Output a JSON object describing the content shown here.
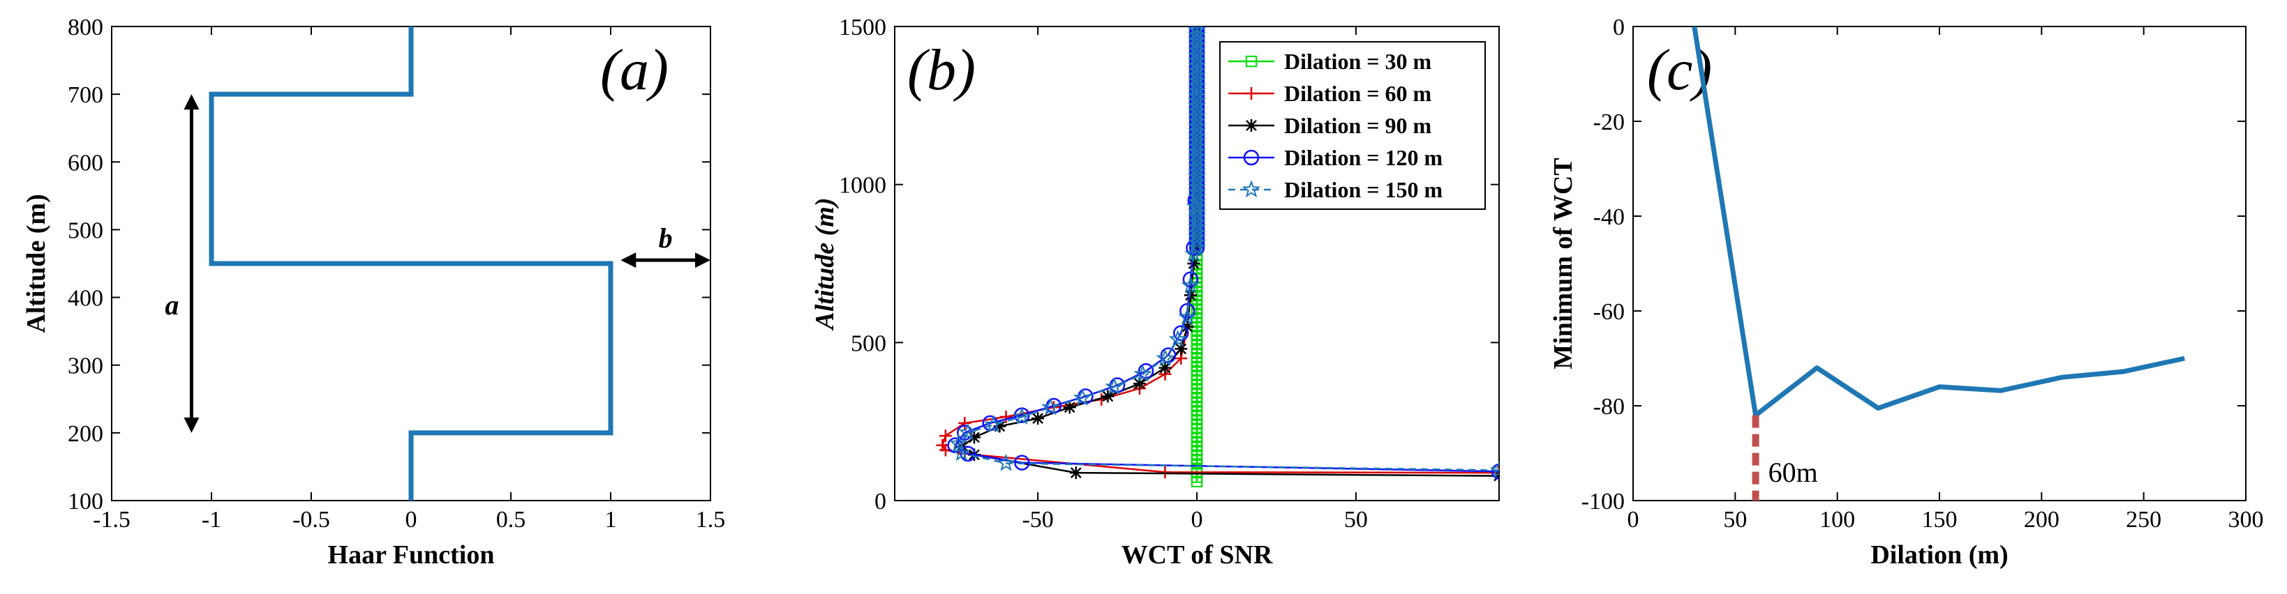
{
  "chart_data": [
    {
      "type": "line",
      "panel_label": "(a)",
      "xlabel": "Haar Function",
      "ylabel": "Altitude (m)",
      "xlim": [
        -1.5,
        1.5
      ],
      "ylim": [
        100,
        800
      ],
      "xticks": [
        "-1.5",
        "-1",
        "-0.5",
        "0",
        "0.5",
        "1",
        "1.5"
      ],
      "yticks": [
        "100",
        "200",
        "300",
        "400",
        "500",
        "600",
        "700",
        "800"
      ],
      "grid": false,
      "series": [
        {
          "color": "#1f77b4",
          "x": [
            0,
            0,
            1,
            1,
            -1,
            -1,
            0,
            0
          ],
          "y": [
            100,
            200,
            200,
            450,
            450,
            700,
            700,
            800
          ]
        }
      ],
      "annotations": [
        {
          "text": "a",
          "type": "double-arrow-vertical",
          "x": -1.1,
          "y_range": [
            200,
            700
          ]
        },
        {
          "text": "b",
          "type": "double-arrow-horizontal",
          "y": 455,
          "x_range": [
            1.05,
            1.5
          ]
        }
      ],
      "colors": {
        "line": "#1f77b4",
        "arrow": "#000000"
      }
    },
    {
      "type": "line",
      "panel_label": "(b)",
      "xlabel": "WCT of SNR",
      "ylabel": "Altitude (m)",
      "xlim": [
        -95,
        95
      ],
      "ylim": [
        0,
        1500
      ],
      "xticks": [
        "-50",
        "0",
        "50"
      ],
      "yticks": [
        "0",
        "500",
        "1000",
        "1500"
      ],
      "grid": false,
      "legend_position": "top-right",
      "series": [
        {
          "name": "Dilation = 30 m",
          "color": "#00dd00",
          "marker": "square",
          "linestyle": "solid",
          "x": [
            0,
            0
          ],
          "y": [
            60,
            780
          ]
        },
        {
          "name": "Dilation = 60 m",
          "color": "#dd0000",
          "marker": "plus",
          "linestyle": "solid",
          "x": [
            95,
            -10,
            -73,
            -79,
            -80,
            -79,
            -73,
            -60,
            -45,
            -30,
            -18,
            -10,
            -5,
            -3,
            -2,
            -1,
            -0.5,
            0
          ],
          "y": [
            88,
            90,
            148,
            160,
            175,
            205,
            245,
            265,
            295,
            320,
            355,
            400,
            450,
            550,
            650,
            750,
            900,
            1500
          ]
        },
        {
          "name": "Dilation = 90 m",
          "color": "#000000",
          "marker": "star",
          "linestyle": "solid",
          "x": [
            95,
            -38,
            -70,
            -74,
            -70,
            -62,
            -50,
            -40,
            -28,
            -18,
            -10,
            -5,
            -3,
            -2,
            -1,
            -0.5,
            0
          ],
          "y": [
            78,
            88,
            145,
            170,
            200,
            235,
            260,
            295,
            330,
            370,
            420,
            480,
            550,
            650,
            750,
            900,
            1500
          ]
        },
        {
          "name": "Dilation = 120 m",
          "color": "#1010ff",
          "marker": "circle",
          "linestyle": "solid",
          "x": [
            95,
            -55,
            -72,
            -76,
            -73,
            -65,
            -55,
            -45,
            -35,
            -25,
            -16,
            -9,
            -5,
            -3,
            -2,
            -1,
            -0.5,
            0
          ],
          "y": [
            92,
            120,
            148,
            175,
            215,
            245,
            270,
            300,
            330,
            365,
            410,
            460,
            530,
            600,
            700,
            800,
            950,
            1500
          ]
        },
        {
          "name": "Dilation = 150 m",
          "color": "#1f77b4",
          "marker": "pentagram",
          "linestyle": "dashed",
          "x": [
            95,
            -60,
            -74,
            -75,
            -72,
            -64,
            -55,
            -46,
            -36,
            -26,
            -17,
            -10,
            -6,
            -3,
            -2,
            -1,
            -0.5,
            0
          ],
          "y": [
            96,
            118,
            150,
            180,
            215,
            240,
            265,
            295,
            325,
            360,
            400,
            450,
            510,
            580,
            680,
            780,
            930,
            1500
          ]
        }
      ],
      "colors": {
        "axis": "#000000"
      }
    },
    {
      "type": "line",
      "panel_label": "(c)",
      "xlabel": "Dilation (m)",
      "ylabel": "Minimum of WCT",
      "xlim": [
        0,
        300
      ],
      "ylim": [
        -100,
        0
      ],
      "xticks": [
        "0",
        "50",
        "100",
        "150",
        "200",
        "250",
        "300"
      ],
      "yticks": [
        "-100",
        "-80",
        "-60",
        "-40",
        "-20",
        "0"
      ],
      "grid": false,
      "series": [
        {
          "color": "#1f77b4",
          "x": [
            30,
            60,
            90,
            120,
            150,
            180,
            210,
            240,
            270
          ],
          "y": [
            0,
            -82,
            -72,
            -80.5,
            -76,
            -76.8,
            -74,
            -72.8,
            -70
          ]
        }
      ],
      "annotations": [
        {
          "text": "60m",
          "type": "dashed-vertical",
          "x": 60,
          "y_range": [
            -100,
            -82
          ],
          "color": "#c0504d"
        }
      ],
      "colors": {
        "line": "#1f77b4",
        "marker_line": "#c0504d"
      }
    }
  ]
}
